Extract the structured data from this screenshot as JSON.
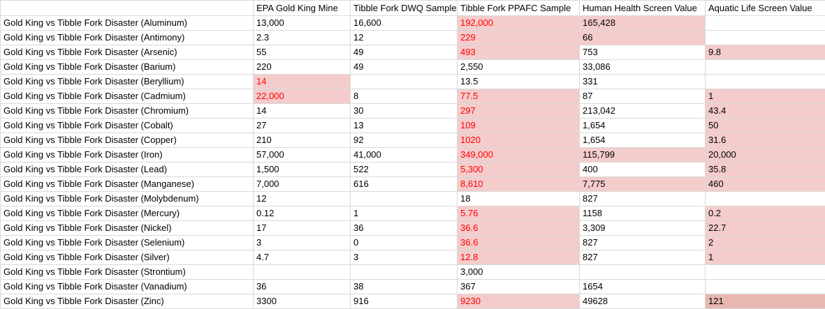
{
  "headers": [
    "",
    "EPA Gold King Mine",
    "Tibble Fork DWQ Sample",
    "Tibble Fork PPAFC Sample",
    "Human Health Screen Value",
    "Aquatic Life  Screen Value"
  ],
  "rows": [
    [
      "Gold King vs Tibble Fork Disaster (Aluminum)",
      "13,000",
      "16,600",
      "192,000",
      "165,428",
      ""
    ],
    [
      "Gold King vs Tibble Fork Disaster (Antimony)",
      "2.3",
      "12",
      "229",
      "66",
      ""
    ],
    [
      "Gold King vs Tibble Fork Disaster (Arsenic)",
      "55",
      "49",
      "493",
      "753",
      "9.8"
    ],
    [
      "Gold King vs Tibble Fork Disaster (Barium)",
      "220",
      "49",
      "2,550",
      "33,086",
      ""
    ],
    [
      "Gold King vs Tibble Fork Disaster (Beryllium)",
      "14",
      "",
      "13.5",
      "331",
      ""
    ],
    [
      "Gold King vs Tibble Fork Disaster (Cadmium)",
      "22,000",
      "8",
      "77.5",
      "87",
      "1"
    ],
    [
      "Gold King vs Tibble Fork Disaster (Chromium)",
      "14",
      "30",
      "297",
      "213,042",
      "43.4"
    ],
    [
      "Gold King vs Tibble Fork Disaster (Cobalt)",
      "27",
      "13",
      "109",
      "1,654",
      "50"
    ],
    [
      "Gold King vs Tibble Fork Disaster (Copper)",
      "210",
      "92",
      "1020",
      "1,654",
      "31.6"
    ],
    [
      "Gold King vs Tibble Fork Disaster (Iron)",
      "57,000",
      "41,000",
      "349,000",
      "115,799",
      "20,000"
    ],
    [
      "Gold King vs Tibble Fork Disaster (Lead)",
      "1,500",
      "522",
      "5,300",
      "400",
      "35.8"
    ],
    [
      "Gold King vs Tibble Fork Disaster (Manganese)",
      "7,000",
      "616",
      "8,610",
      "7,775",
      "460"
    ],
    [
      "Gold King vs Tibble Fork Disaster (Molybdenum)",
      "12",
      "",
      "18",
      "827",
      ""
    ],
    [
      "Gold King vs Tibble Fork Disaster (Mercury)",
      "0.12",
      "1",
      "5.76",
      "1158",
      "0.2"
    ],
    [
      "Gold King vs Tibble Fork Disaster (Nickel)",
      "17",
      "36",
      "36.6",
      "3,309",
      "22.7"
    ],
    [
      "Gold King vs Tibble Fork Disaster (Selenium)",
      "3",
      "0",
      "36.6",
      "827",
      "2"
    ],
    [
      "Gold King vs Tibble Fork Disaster (Silver)",
      "4.7",
      "3",
      "12.8",
      "827",
      "1"
    ],
    [
      "Gold King vs Tibble Fork Disaster (Strontium)",
      "",
      "",
      "3,000",
      "",
      ""
    ],
    [
      "Gold King vs Tibble Fork Disaster (Vanadium)",
      "36",
      "38",
      "367",
      "1654",
      ""
    ],
    [
      "Gold King vs Tibble Fork Disaster (Zinc)",
      "3300",
      "916",
      "9230",
      "49628",
      "121"
    ]
  ],
  "highlights": [
    [
      0,
      3,
      "hl",
      true
    ],
    [
      0,
      4,
      "hl",
      false
    ],
    [
      1,
      3,
      "hl",
      true
    ],
    [
      1,
      4,
      "hl",
      false
    ],
    [
      2,
      3,
      "hl",
      true
    ],
    [
      2,
      5,
      "hl",
      false
    ],
    [
      4,
      1,
      "hl",
      true
    ],
    [
      5,
      1,
      "hl",
      true
    ],
    [
      5,
      3,
      "hl",
      true
    ],
    [
      5,
      5,
      "hl",
      false
    ],
    [
      6,
      3,
      "hl",
      true
    ],
    [
      6,
      5,
      "hl",
      false
    ],
    [
      7,
      3,
      "hl",
      true
    ],
    [
      7,
      5,
      "hl",
      false
    ],
    [
      8,
      3,
      "hl",
      true
    ],
    [
      8,
      5,
      "hl",
      false
    ],
    [
      9,
      3,
      "hl",
      true
    ],
    [
      9,
      4,
      "hl",
      false
    ],
    [
      9,
      5,
      "hl",
      false
    ],
    [
      10,
      3,
      "hl",
      true
    ],
    [
      10,
      5,
      "hl",
      false
    ],
    [
      11,
      3,
      "hl",
      true
    ],
    [
      11,
      4,
      "hl",
      false
    ],
    [
      11,
      5,
      "hl",
      false
    ],
    [
      13,
      3,
      "hl",
      true
    ],
    [
      13,
      5,
      "hl",
      false
    ],
    [
      14,
      3,
      "hl",
      true
    ],
    [
      14,
      5,
      "hl",
      false
    ],
    [
      15,
      3,
      "hl",
      true
    ],
    [
      15,
      5,
      "hl",
      false
    ],
    [
      16,
      3,
      "hl",
      true
    ],
    [
      16,
      5,
      "hl",
      false
    ],
    [
      19,
      3,
      "hl",
      true
    ],
    [
      19,
      5,
      "hl-dark",
      false
    ]
  ]
}
